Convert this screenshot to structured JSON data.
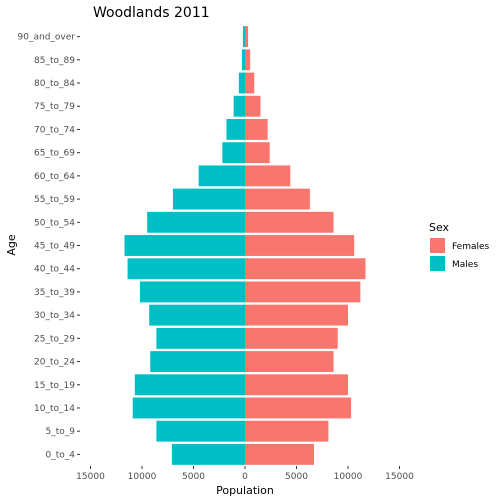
{
  "chart_data": {
    "type": "bar",
    "orientation": "horizontal",
    "title": "Woodlands  2011",
    "xlabel": "Population",
    "ylabel": "Age",
    "categories": [
      "0_to_4",
      "5_to_9",
      "10_to_14",
      "15_to_19",
      "20_to_24",
      "25_to_29",
      "30_to_34",
      "35_to_39",
      "40_to_44",
      "45_to_49",
      "50_to_54",
      "55_to_59",
      "60_to_64",
      "65_to_69",
      "70_to_74",
      "75_to_79",
      "80_to_84",
      "85_to_89",
      "90_and_over"
    ],
    "series": [
      {
        "name": "Females",
        "color": "#F8766D",
        "values": [
          6700,
          8100,
          10300,
          10000,
          8600,
          9000,
          10000,
          11200,
          11700,
          10600,
          8600,
          6300,
          4400,
          2400,
          2200,
          1500,
          900,
          500,
          300
        ]
      },
      {
        "name": "Males",
        "color": "#00BFC4",
        "values": [
          -7100,
          -8600,
          -10900,
          -10700,
          -9200,
          -8600,
          -9300,
          -10200,
          -11400,
          -11700,
          -9500,
          -7000,
          -4500,
          -2200,
          -1800,
          -1100,
          -600,
          -300,
          -200
        ]
      }
    ],
    "xticks": [
      -15000,
      -10000,
      -5000,
      0,
      5000,
      10000,
      15000
    ],
    "xtick_labels": [
      "15000",
      "10000",
      "5000",
      "0",
      "5000",
      "10000",
      "15000"
    ],
    "xlim": [
      -16000,
      16000
    ],
    "legend": {
      "title": "Sex",
      "placement": "right",
      "entries": [
        "Females",
        "Males"
      ]
    },
    "grid": false
  }
}
